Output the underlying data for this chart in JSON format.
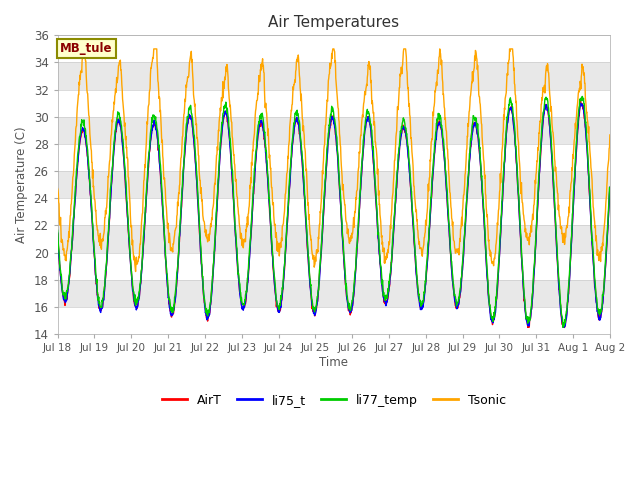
{
  "title": "Air Temperatures",
  "xlabel": "Time",
  "ylabel": "Air Temperature (C)",
  "ylim": [
    14,
    36
  ],
  "yticks": [
    14,
    16,
    18,
    20,
    22,
    24,
    26,
    28,
    30,
    32,
    34,
    36
  ],
  "xtick_labels": [
    "Jul 18",
    "Jul 19",
    "Jul 20",
    "Jul 21",
    "Jul 22",
    "Jul 23",
    "Jul 24",
    "Jul 25",
    "Jul 26",
    "Jul 27",
    "Jul 28",
    "Jul 29",
    "Jul 30",
    "Jul 31",
    "Aug 1",
    "Aug 2"
  ],
  "annotation_text": "MB_tule",
  "annotation_color": "#8B0000",
  "annotation_bg": "#FFFFCC",
  "annotation_border": "#8B8B00",
  "series": {
    "AirT": {
      "color": "#FF0000",
      "lw": 1.0
    },
    "li75_t": {
      "color": "#0000FF",
      "lw": 1.0
    },
    "li77_temp": {
      "color": "#00CC00",
      "lw": 1.0
    },
    "Tsonic": {
      "color": "#FFA500",
      "lw": 1.0
    }
  },
  "bg_outer": "#F0F0F0",
  "band_light": "#FFFFFF",
  "band_dark": "#E8E8E8",
  "n_days": 15.5,
  "pts_per_day": 96,
  "base_min": 15.5,
  "base_max": 30.0,
  "tsonic_min": 20.0,
  "tsonic_max": 33.5
}
